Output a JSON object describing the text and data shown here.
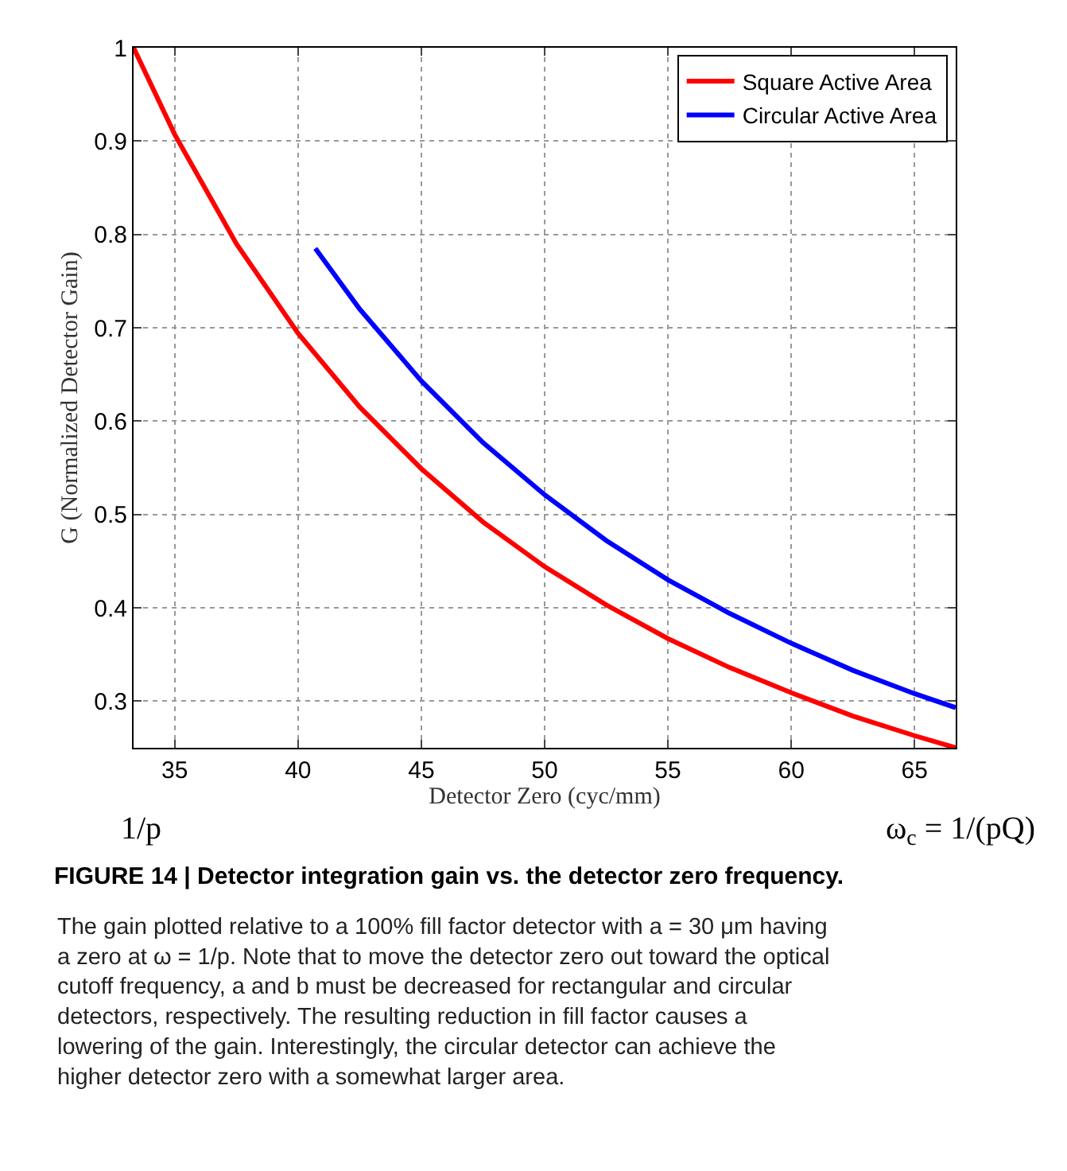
{
  "chart_data": {
    "type": "line",
    "title": "FIGURE 14 | Detector integration gain vs. the detector zero frequency.",
    "xlabel": "Detector Zero (cyc/mm)",
    "ylabel": "G (Normalized Detector Gain)",
    "series": [
      {
        "name": "Square Active Area",
        "color": "#ff0000",
        "x": [
          33.33,
          35,
          37.5,
          40,
          42.5,
          45,
          47.5,
          50,
          52.5,
          55,
          57.5,
          60,
          62.5,
          65,
          66.67
        ],
        "values": [
          1,
          0.907,
          0.79,
          0.694,
          0.615,
          0.549,
          0.492,
          0.444,
          0.403,
          0.367,
          0.336,
          0.309,
          0.284,
          0.263,
          0.25
        ]
      },
      {
        "name": "Circular Active Area",
        "color": "#0000ff",
        "x": [
          40.7,
          42.5,
          45,
          47.5,
          50,
          52.5,
          55,
          57.5,
          60,
          62.5,
          65,
          66.67
        ],
        "values": [
          0.785,
          0.72,
          0.643,
          0.577,
          0.521,
          0.472,
          0.43,
          0.394,
          0.362,
          0.333,
          0.308,
          0.293
        ]
      }
    ],
    "xlim": [
      33.33,
      66.67
    ],
    "ylim": [
      0.25,
      1
    ],
    "xticks": [
      35,
      40,
      45,
      50,
      55,
      60,
      65
    ],
    "yticks": [
      0.3,
      0.4,
      0.5,
      0.6,
      0.7,
      0.8,
      0.9,
      1
    ],
    "grid": true,
    "legend": "top right",
    "marker": "none",
    "line_style": "solid",
    "annotations": [
      "1/p",
      "ω$_{c}$ = 1/(pQ)",
      "The gain plotted relative to a 100% fill factor detector with a = 30 μm having a zero at ω = 1/p. Note that to move the detector zero out toward the optical cutoff frequency, a and b must be decreased for rectangular and circular detectors, respectively. The resulting reduction in fill factor causes a lowering of the gain. Interestingly, the circular detector can achieve the higher detector zero with a somewhat larger area."
    ]
  }
}
